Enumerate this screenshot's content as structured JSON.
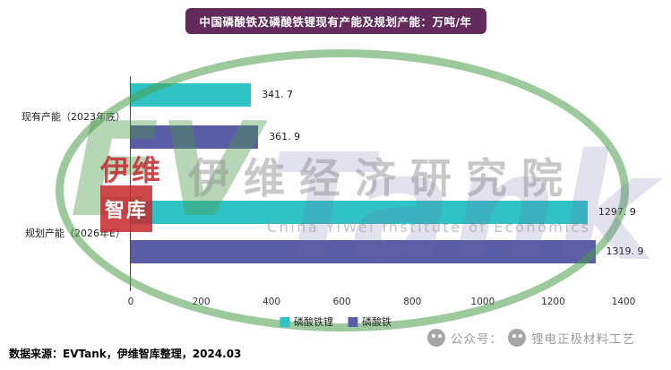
{
  "title": "中国磷酸铁及磷酸铁锂现有产能及规划产能：万吨/年",
  "chart_data": {
    "type": "bar",
    "orientation": "horizontal",
    "categories": [
      "现有产能（2023年底）",
      "规划产能（2026年E）"
    ],
    "series": [
      {
        "name": "磷酸铁锂",
        "color": "#2fc3c6",
        "values": [
          341.7,
          1297.9
        ],
        "labels": [
          "341. 7",
          "1297. 9"
        ]
      },
      {
        "name": "磷酸铁",
        "color": "#5a5ca6",
        "values": [
          361.9,
          1319.9
        ],
        "labels": [
          "361. 9",
          "1319. 9"
        ]
      }
    ],
    "xlim": [
      0,
      1400
    ],
    "xticks": [
      0,
      200,
      400,
      600,
      800,
      1000,
      1200,
      1400
    ],
    "legend_position": "bottom",
    "grid": false
  },
  "source": "数据来源：EVTank，伊维智库整理，2024.03",
  "watermark": {
    "logo_cn_top": "伊维",
    "logo_cn_box": "智库",
    "logo_en_left": "EV",
    "logo_en_right": "Tank",
    "institute_cn": "伊维经济研究院",
    "institute_en": "China YiWei Institute of Economics"
  },
  "footer": {
    "account_prefix": "公众号：",
    "account_name": "锂电正极材料工艺"
  },
  "colors": {
    "title_bg": "#632a5c"
  }
}
